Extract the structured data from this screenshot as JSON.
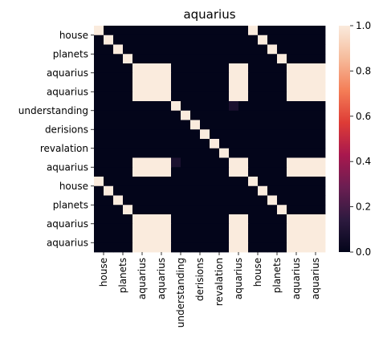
{
  "chart_data": {
    "type": "heatmap",
    "title": "aquarius",
    "xlabel": "",
    "ylabel": "",
    "row_labels": [
      "house",
      "planets",
      "aquarius",
      "aquarius",
      "understanding",
      "derisions",
      "revalation",
      "aquarius",
      "house",
      "planets",
      "aquarius",
      "aquarius"
    ],
    "col_labels": [
      "house",
      "planets",
      "aquarius",
      "aquarius",
      "understanding",
      "derisions",
      "revalation",
      "aquarius",
      "house",
      "planets",
      "aquarius",
      "aquarius"
    ],
    "y_tick_rows": [
      1,
      3,
      5,
      7,
      9,
      11,
      13,
      15,
      17,
      19,
      21,
      23
    ],
    "x_tick_cols": [
      1,
      3,
      5,
      7,
      9,
      11,
      13,
      15,
      17,
      19,
      21,
      23
    ],
    "n_rows": 24,
    "n_cols": 24,
    "values_note": "",
    "values": [
      [
        1,
        0,
        0,
        0,
        0,
        0,
        0,
        0,
        0,
        0,
        0,
        0,
        0,
        0,
        0,
        0,
        1,
        0,
        0,
        0,
        0,
        0,
        0,
        0
      ],
      [
        0,
        1,
        0,
        0,
        0,
        0,
        0,
        0,
        0,
        0,
        0,
        0,
        0,
        0,
        0,
        0,
        0,
        1,
        0,
        0,
        0,
        0,
        0,
        0
      ],
      [
        0,
        0,
        1,
        0,
        0,
        0,
        0,
        0,
        0,
        0,
        0,
        0,
        0,
        0,
        0,
        0,
        0,
        0,
        1,
        0,
        0,
        0,
        0,
        0
      ],
      [
        0,
        0,
        0,
        1,
        0,
        0,
        0,
        0,
        0,
        0,
        0,
        0,
        0,
        0,
        0,
        0,
        0,
        0,
        0,
        1,
        0,
        0,
        0,
        0
      ],
      [
        0,
        0,
        0,
        0,
        1,
        1,
        1,
        1,
        0,
        0,
        0,
        0,
        0,
        0,
        1,
        1,
        0,
        0,
        0,
        0,
        1,
        1,
        1,
        1
      ],
      [
        0,
        0,
        0,
        0,
        1,
        1,
        1,
        1,
        0,
        0,
        0,
        0,
        0,
        0,
        1,
        1,
        0,
        0,
        0,
        0,
        1,
        1,
        1,
        1
      ],
      [
        0,
        0,
        0,
        0,
        1,
        1,
        1,
        1,
        0,
        0,
        0,
        0,
        0,
        0,
        1,
        1,
        0,
        0,
        0,
        0,
        1,
        1,
        1,
        1
      ],
      [
        0,
        0,
        0,
        0,
        1,
        1,
        1,
        1,
        0,
        0,
        0,
        0,
        0,
        0,
        1,
        1,
        0,
        0,
        0,
        0,
        1,
        1,
        1,
        1
      ],
      [
        0,
        0,
        0,
        0,
        0,
        0,
        0,
        0,
        1,
        0,
        0,
        0,
        0,
        0,
        0.08,
        0,
        0,
        0,
        0,
        0,
        0,
        0,
        0,
        0
      ],
      [
        0,
        0,
        0,
        0,
        0,
        0,
        0,
        0,
        0,
        1,
        0,
        0,
        0,
        0,
        0,
        0,
        0,
        0,
        0,
        0,
        0,
        0,
        0,
        0
      ],
      [
        0,
        0,
        0,
        0,
        0,
        0,
        0,
        0,
        0,
        0,
        1,
        0,
        0,
        0,
        0,
        0,
        0,
        0,
        0,
        0,
        0,
        0,
        0,
        0
      ],
      [
        0,
        0,
        0,
        0,
        0,
        0,
        0,
        0,
        0,
        0,
        0,
        1,
        0,
        0,
        0,
        0,
        0,
        0,
        0,
        0,
        0,
        0,
        0,
        0
      ],
      [
        0,
        0,
        0,
        0,
        0,
        0,
        0,
        0,
        0,
        0,
        0,
        0,
        1,
        0,
        0,
        0,
        0,
        0,
        0,
        0,
        0,
        0,
        0,
        0
      ],
      [
        0,
        0,
        0,
        0,
        0,
        0,
        0,
        0,
        0,
        0,
        0,
        0,
        0,
        1,
        0,
        0,
        0,
        0,
        0,
        0,
        0,
        0,
        0,
        0
      ],
      [
        0,
        0,
        0,
        0,
        1,
        1,
        1,
        1,
        0.08,
        0,
        0,
        0,
        0,
        0,
        1,
        1,
        0,
        0,
        0,
        0,
        1,
        1,
        1,
        1
      ],
      [
        0,
        0,
        0,
        0,
        1,
        1,
        1,
        1,
        0,
        0,
        0,
        0,
        0,
        0,
        1,
        1,
        0,
        0,
        0,
        0,
        1,
        1,
        1,
        1
      ],
      [
        1,
        0,
        0,
        0,
        0,
        0,
        0,
        0,
        0,
        0,
        0,
        0,
        0,
        0,
        0,
        0,
        1,
        0,
        0,
        0,
        0,
        0,
        0,
        0
      ],
      [
        0,
        1,
        0,
        0,
        0,
        0,
        0,
        0,
        0,
        0,
        0,
        0,
        0,
        0,
        0,
        0,
        0,
        1,
        0,
        0,
        0,
        0,
        0,
        0
      ],
      [
        0,
        0,
        1,
        0,
        0,
        0,
        0,
        0,
        0,
        0,
        0,
        0,
        0,
        0,
        0,
        0,
        0,
        0,
        1,
        0,
        0,
        0,
        0,
        0
      ],
      [
        0,
        0,
        0,
        1,
        0,
        0,
        0,
        0,
        0,
        0,
        0,
        0,
        0,
        0,
        0,
        0,
        0,
        0,
        0,
        1,
        0,
        0,
        0,
        0
      ],
      [
        0,
        0,
        0,
        0,
        1,
        1,
        1,
        1,
        0,
        0,
        0,
        0,
        0,
        0,
        1,
        1,
        0,
        0,
        0,
        0,
        1,
        1,
        1,
        1
      ],
      [
        0,
        0,
        0,
        0,
        1,
        1,
        1,
        1,
        0,
        0,
        0,
        0,
        0,
        0,
        1,
        1,
        0,
        0,
        0,
        0,
        1,
        1,
        1,
        1
      ],
      [
        0,
        0,
        0,
        0,
        1,
        1,
        1,
        1,
        0,
        0,
        0,
        0,
        0,
        0,
        1,
        1,
        0,
        0,
        0,
        0,
        1,
        1,
        1,
        1
      ],
      [
        0,
        0,
        0,
        0,
        1,
        1,
        1,
        1,
        0,
        0,
        0,
        0,
        0,
        0,
        1,
        1,
        0,
        0,
        0,
        0,
        1,
        1,
        1,
        1
      ]
    ],
    "colorbar": {
      "range": [
        0.0,
        1.0
      ],
      "ticks": [
        "0.0",
        "0.2",
        "0.4",
        "0.6",
        "0.8",
        "1.0"
      ],
      "tick_values": [
        0.0,
        0.2,
        0.4,
        0.6,
        0.8,
        1.0
      ],
      "colormap": "rocket",
      "color_stops": [
        "#03051a",
        "#2d1a3f",
        "#6b1e52",
        "#a8184e",
        "#de3c36",
        "#f47e57",
        "#f6bc9c",
        "#faebdd"
      ]
    },
    "grid": false,
    "legend": "colorbar-right"
  }
}
